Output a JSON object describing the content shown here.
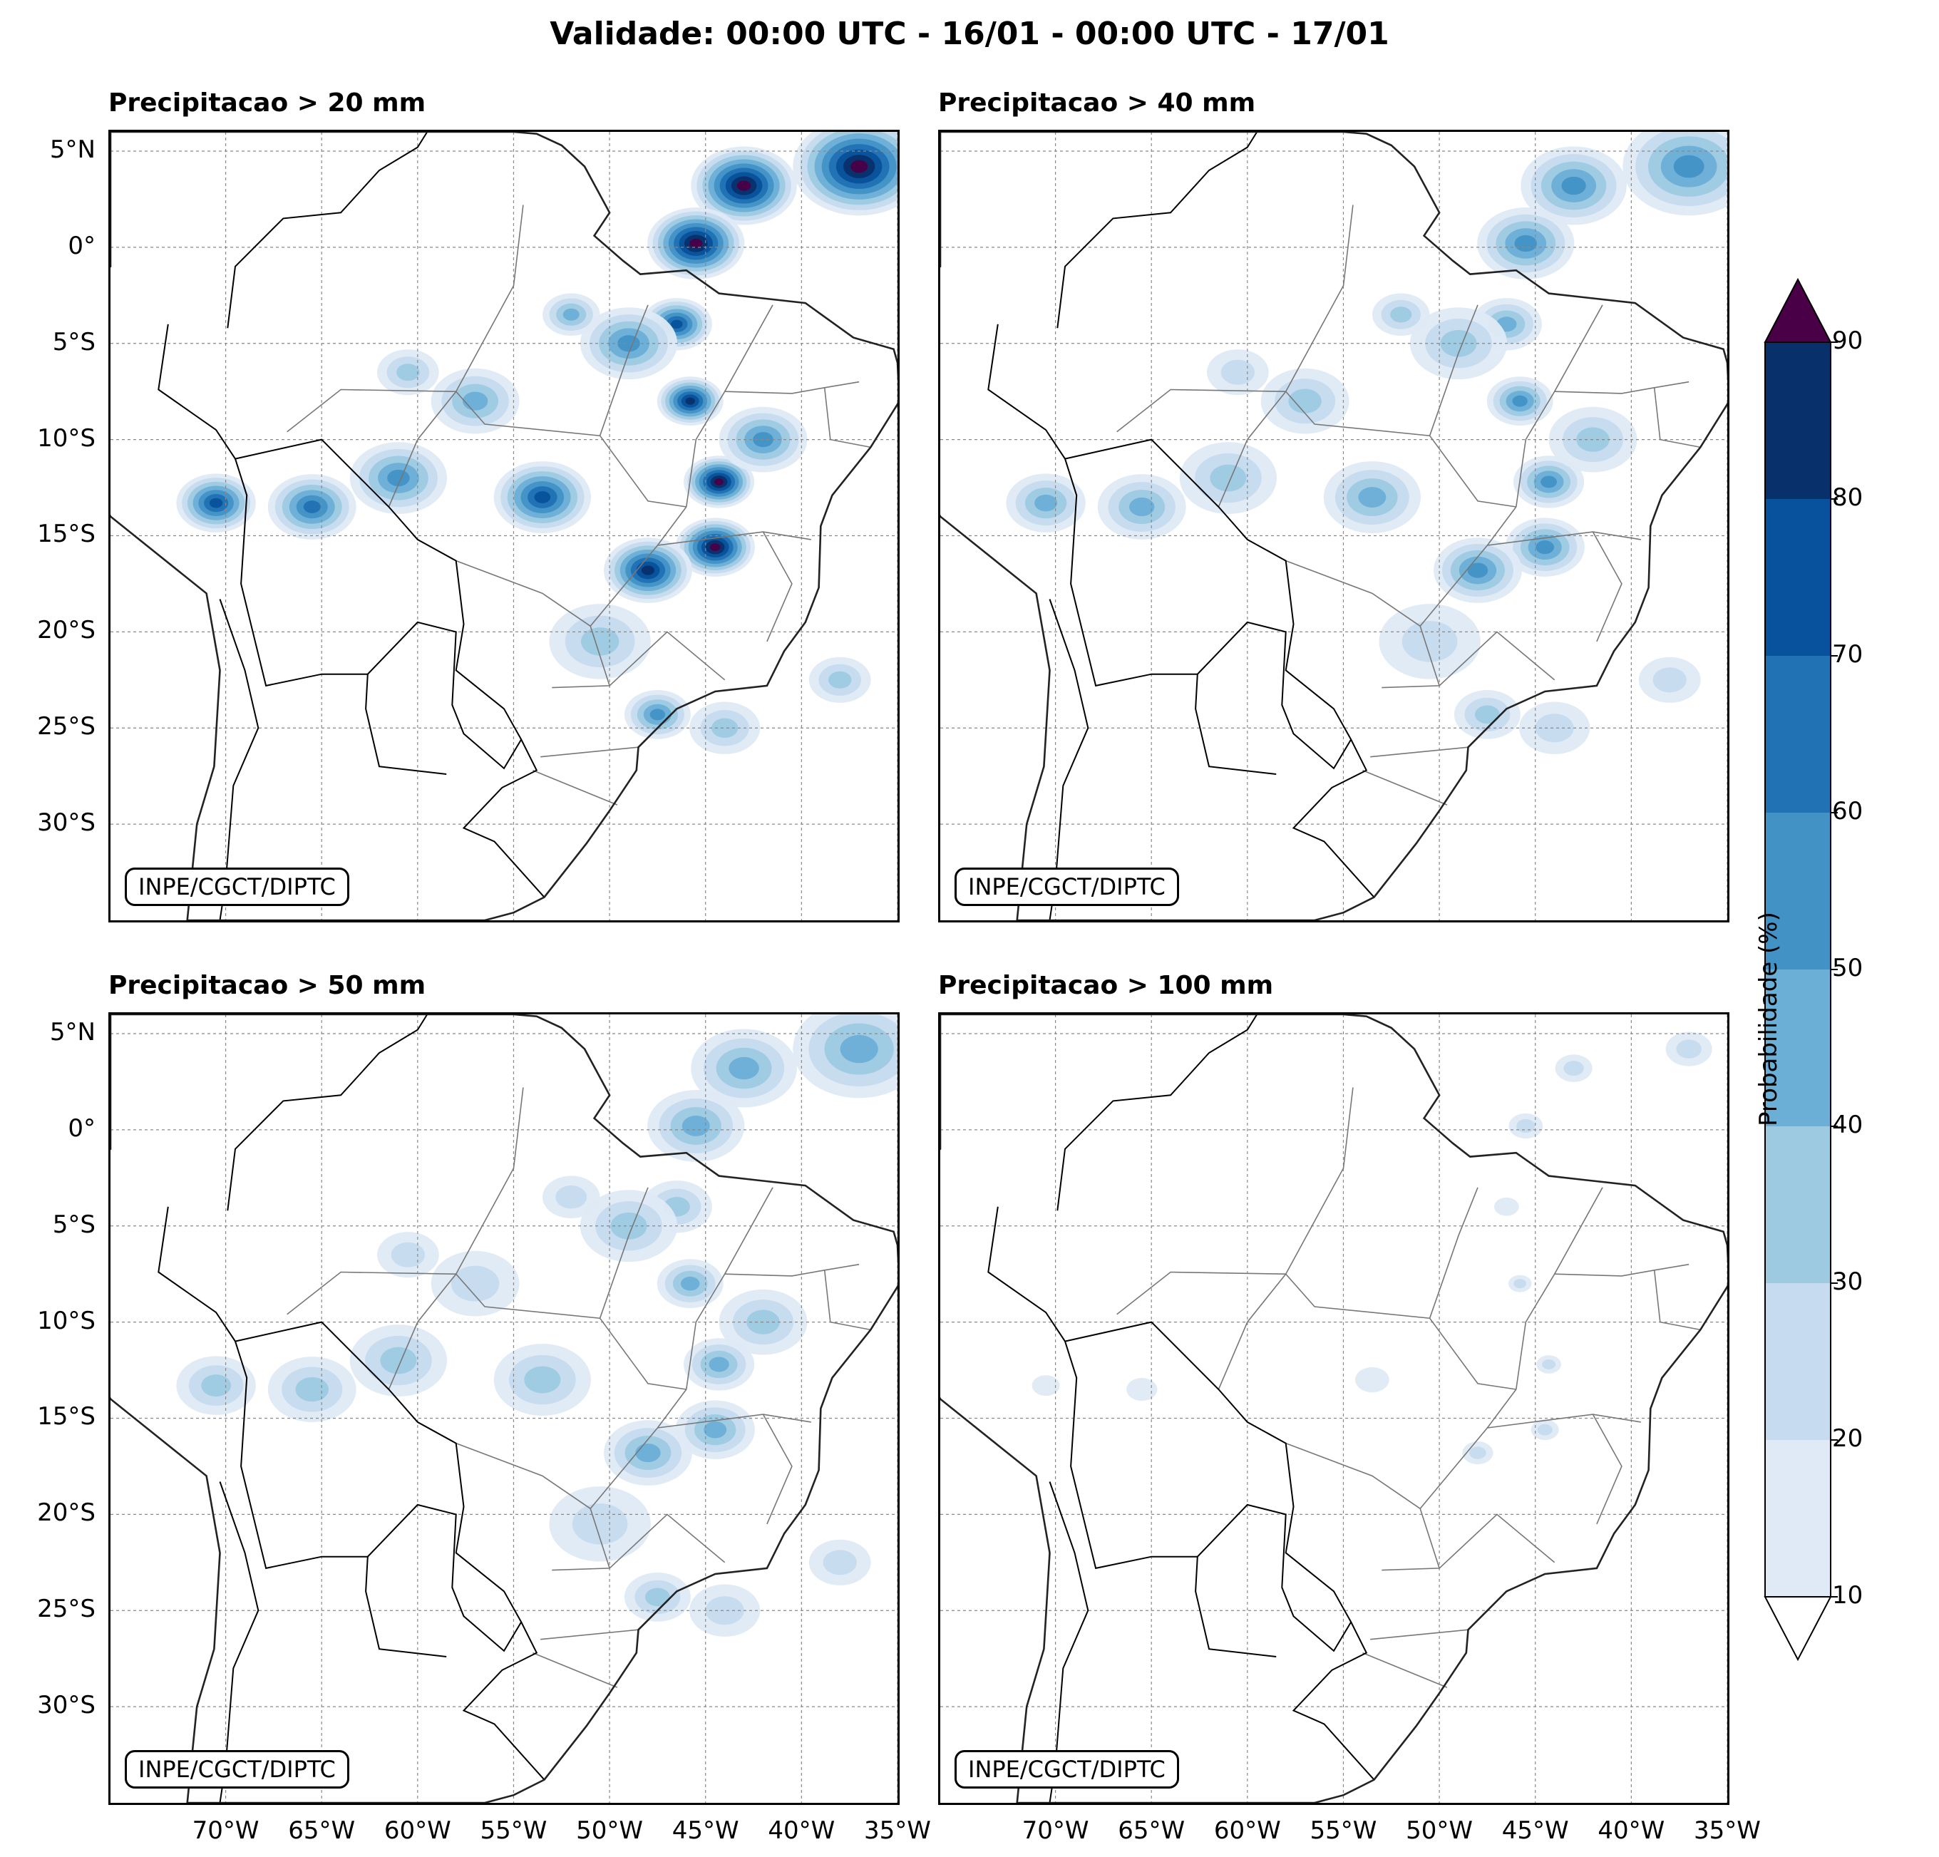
{
  "title": "Validade: 00:00 UTC - 16/01 - 00:00 UTC - 17/01",
  "credit": "INPE/CGCT/DIPTC",
  "panels": [
    {
      "title": "Precipitacao > 20 mm",
      "intensity": 1.0
    },
    {
      "title": "Precipitacao > 40 mm",
      "intensity": 0.55
    },
    {
      "title": "Precipitacao > 50 mm",
      "intensity": 0.38
    },
    {
      "title": "Precipitacao > 100 mm",
      "intensity": 0.08
    }
  ],
  "lat_labels": [
    "5°N",
    "0°",
    "5°S",
    "10°S",
    "15°S",
    "20°S",
    "25°S",
    "30°S"
  ],
  "lon_labels": [
    "70°W",
    "65°W",
    "60°W",
    "55°W",
    "50°W",
    "45°W",
    "40°W",
    "35°W"
  ],
  "colorbar": {
    "label": "Probabilidade (%)",
    "ticks": [
      "10",
      "20",
      "30",
      "40",
      "50",
      "60",
      "70",
      "80",
      "90"
    ],
    "colors": [
      "#dfeaf6",
      "#c6dbef",
      "#9ecae1",
      "#6baed6",
      "#4292c6",
      "#2171b5",
      "#08519c",
      "#08306b"
    ],
    "over_color": "#4a0046",
    "under_color": "#ffffff"
  },
  "extent": {
    "lon_min": -76,
    "lon_max": -35,
    "lat_min": -35,
    "lat_max": 6
  }
}
